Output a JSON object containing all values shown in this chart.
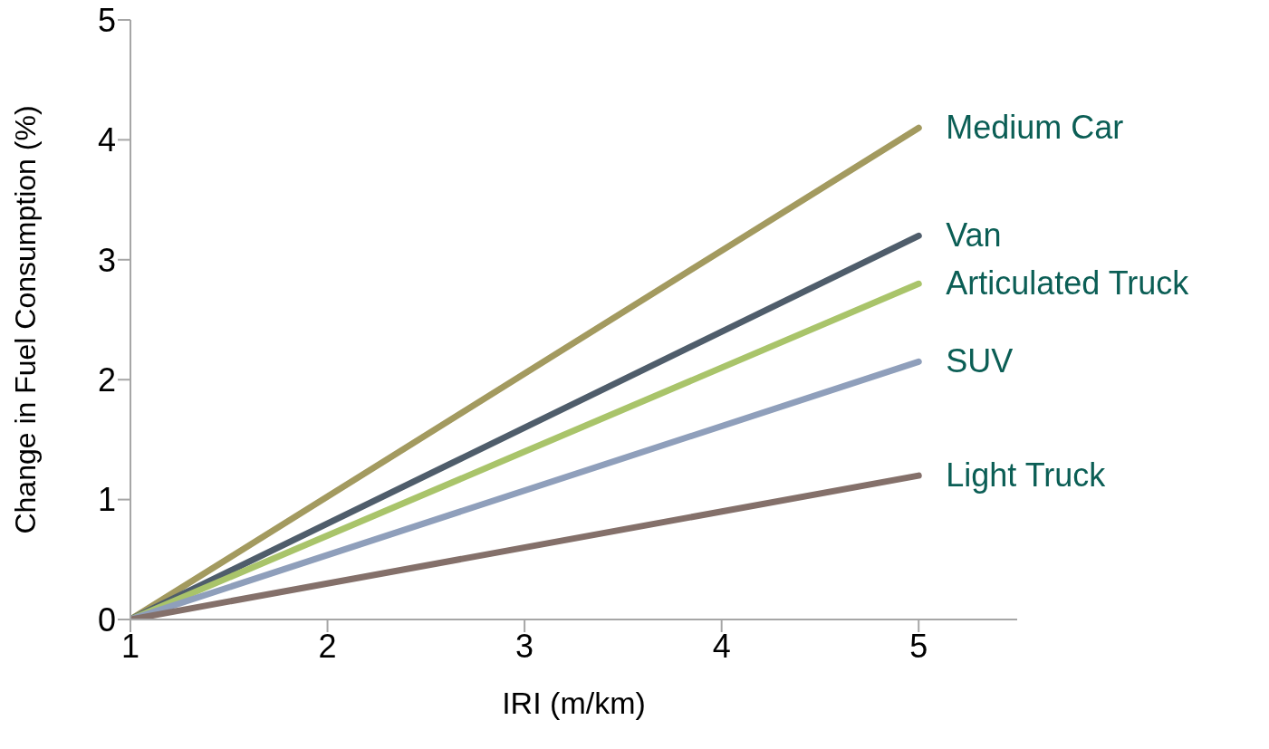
{
  "chart_data": {
    "type": "line",
    "xlabel": "IRI (m/km)",
    "ylabel": "Change in Fuel Consumption (%)",
    "x": [
      1,
      5
    ],
    "series": [
      {
        "name": "Medium Car",
        "color": "#a39a5f",
        "values": [
          0,
          4.1
        ]
      },
      {
        "name": "Van",
        "color": "#4f5d6b",
        "values": [
          0,
          3.2
        ]
      },
      {
        "name": "Articulated Truck",
        "color": "#a9c46a",
        "values": [
          0,
          2.8
        ]
      },
      {
        "name": "SUV",
        "color": "#8f9fbb",
        "values": [
          0,
          2.15
        ]
      },
      {
        "name": "Light Truck",
        "color": "#84706a",
        "values": [
          0,
          1.2
        ]
      }
    ],
    "xlim": [
      1,
      5.5
    ],
    "xticks": [
      1,
      2,
      3,
      4,
      5
    ],
    "ylim": [
      0,
      5
    ],
    "yticks": [
      0,
      1,
      2,
      3,
      4,
      5
    ],
    "grid": false,
    "legend": false,
    "marker": "none",
    "line_style": "solid"
  }
}
